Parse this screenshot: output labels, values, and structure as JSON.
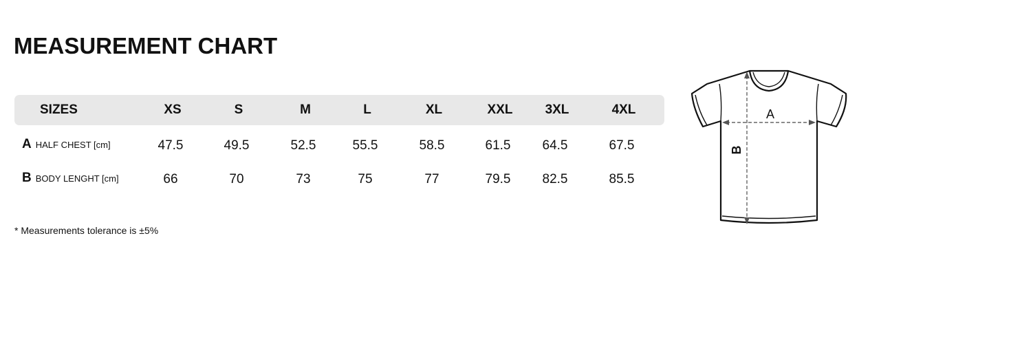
{
  "title": "MEASUREMENT CHART",
  "table": {
    "header": "SIZES",
    "sizes": [
      "XS",
      "S",
      "M",
      "L",
      "XL",
      "XXL",
      "3XL",
      "4XL"
    ],
    "rows": [
      {
        "letter": "A",
        "label": "HALF CHEST [cm]",
        "values": [
          "47.5",
          "49.5",
          "52.5",
          "55.5",
          "58.5",
          "61.5",
          "64.5",
          "67.5"
        ]
      },
      {
        "letter": "B",
        "label": "BODY LENGHT [cm]",
        "values": [
          "66",
          "70",
          "73",
          "75",
          "77",
          "79.5",
          "82.5",
          "85.5"
        ]
      }
    ]
  },
  "note": "* Measurements tolerance is ±5%",
  "diagram": {
    "label_a": "A",
    "label_b": "B",
    "icon": "t-shirt-icon"
  }
}
